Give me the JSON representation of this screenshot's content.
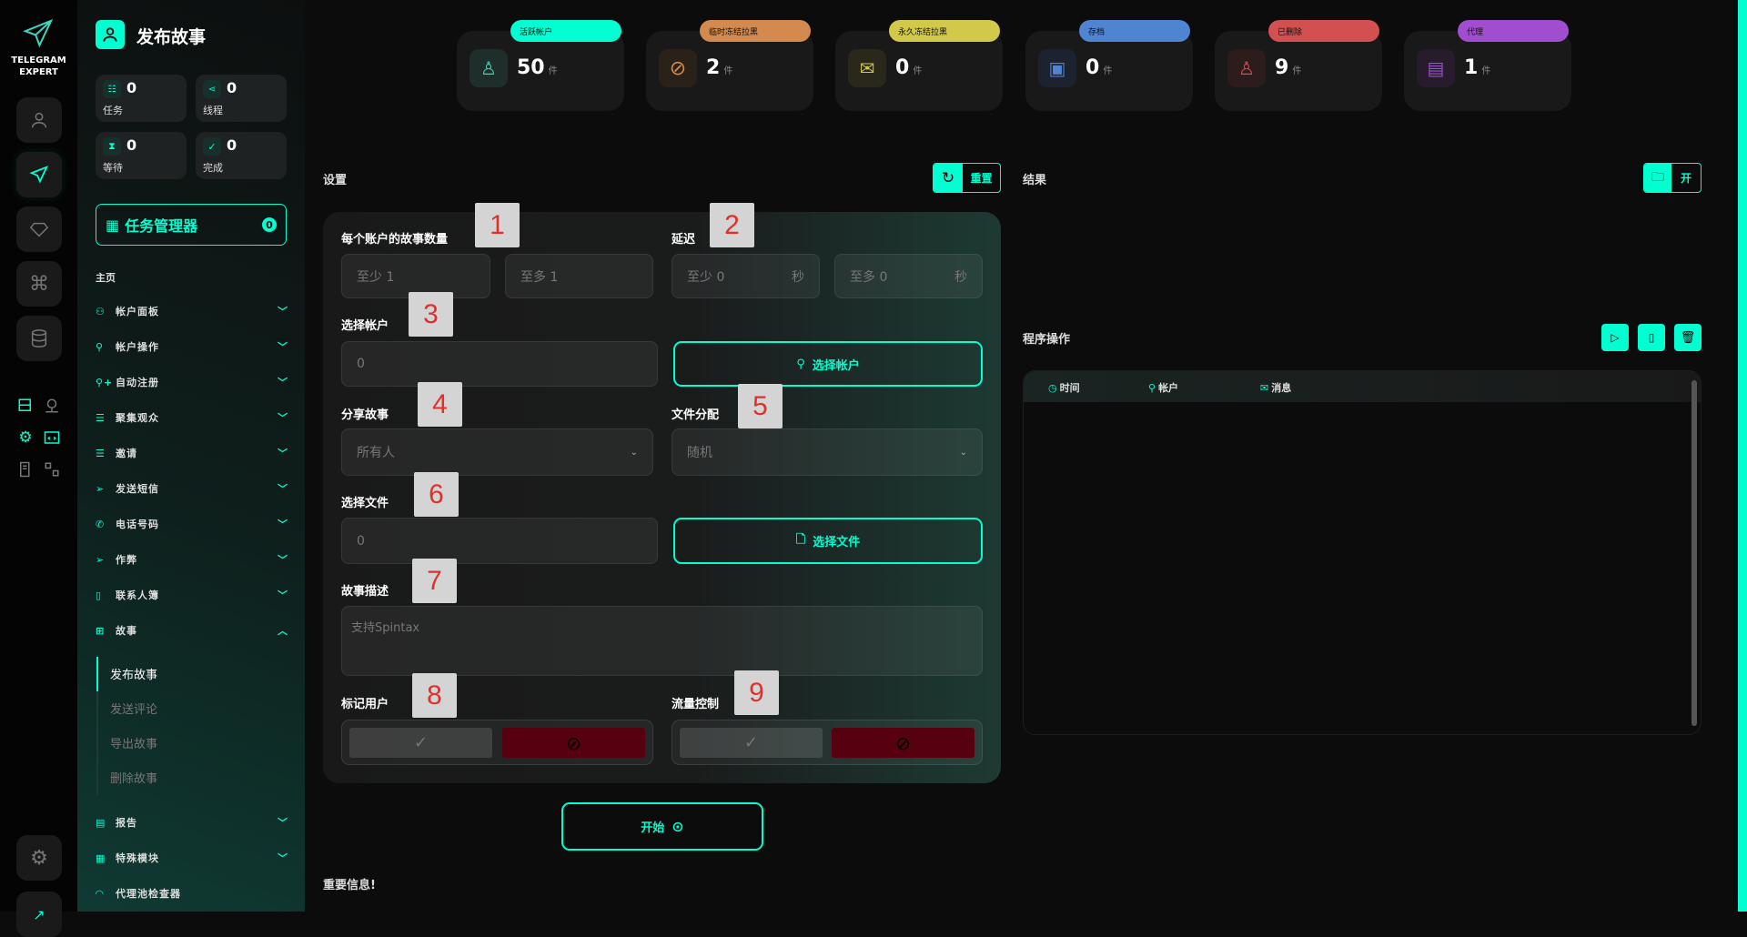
{
  "app": {
    "logo_line1": "TELEGRAM",
    "logo_line2": "EXPERT",
    "accent": "#00ffd1"
  },
  "header": {
    "title": "发布故事"
  },
  "stats": [
    {
      "value": "0",
      "label": "任务"
    },
    {
      "value": "0",
      "label": "线程"
    },
    {
      "value": "0",
      "label": "等待"
    },
    {
      "value": "0",
      "label": "完成"
    }
  ],
  "task_manager": {
    "label": "任务管理器",
    "count": "0"
  },
  "sidebar": {
    "home": "主页",
    "items": [
      {
        "label": "帐户面板"
      },
      {
        "label": "帐户操作"
      },
      {
        "label": "自动注册"
      },
      {
        "label": "聚集观众"
      },
      {
        "label": "邀请"
      },
      {
        "label": "发送短信"
      },
      {
        "label": "电话号码"
      },
      {
        "label": "作弊"
      },
      {
        "label": "联系人簿"
      },
      {
        "label": "故事"
      }
    ],
    "sub_items": [
      {
        "label": "发布故事",
        "active": true
      },
      {
        "label": "发送评论"
      },
      {
        "label": "导出故事"
      },
      {
        "label": "删除故事"
      }
    ],
    "bottom_items": [
      {
        "label": "报告"
      },
      {
        "label": "特殊模块"
      },
      {
        "label": "代理池检查器"
      }
    ]
  },
  "cards": [
    {
      "label": "活跃帐户",
      "value": "50",
      "unit": "件",
      "color": "#00ffd1"
    },
    {
      "label": "临时冻结拉黑",
      "value": "2",
      "unit": "件",
      "color": "#d48a4e"
    },
    {
      "label": "永久冻结拉黑",
      "value": "0",
      "unit": "件",
      "color": "#d2c84a"
    },
    {
      "label": "存档",
      "value": "0",
      "unit": "件",
      "color": "#4f84d0"
    },
    {
      "label": "已删除",
      "value": "9",
      "unit": "件",
      "color": "#d25050"
    },
    {
      "label": "代理",
      "value": "1",
      "unit": "件",
      "color": "#a04ecf"
    }
  ],
  "settings": {
    "title": "设置",
    "reset": "重置",
    "story_count": {
      "label": "每个账户的故事数量",
      "min": "至少  1",
      "max": "至多  1"
    },
    "delay": {
      "label": "延迟",
      "min": "至少  0",
      "max": "至多  0",
      "unit": "秒"
    },
    "select_account": {
      "label": "选择帐户",
      "value": "0",
      "button": "选择帐户"
    },
    "share_story": {
      "label": "分享故事",
      "value": "所有人"
    },
    "file_dist": {
      "label": "文件分配",
      "value": "随机"
    },
    "select_file": {
      "label": "选择文件",
      "value": "0",
      "button": "选择文件"
    },
    "description": {
      "label": "故事描述",
      "placeholder": "支持Spintax"
    },
    "mark_users": {
      "label": "标记用户"
    },
    "flow_control": {
      "label": "流量控制"
    },
    "start": "开始",
    "important": "重要信息!"
  },
  "annotations": [
    "1",
    "2",
    "3",
    "4",
    "5",
    "6",
    "7",
    "8",
    "9"
  ],
  "results": {
    "title": "结果",
    "open": "开"
  },
  "ops": {
    "title": "程序操作",
    "cols": [
      "时间",
      "帐户",
      "消息"
    ]
  }
}
